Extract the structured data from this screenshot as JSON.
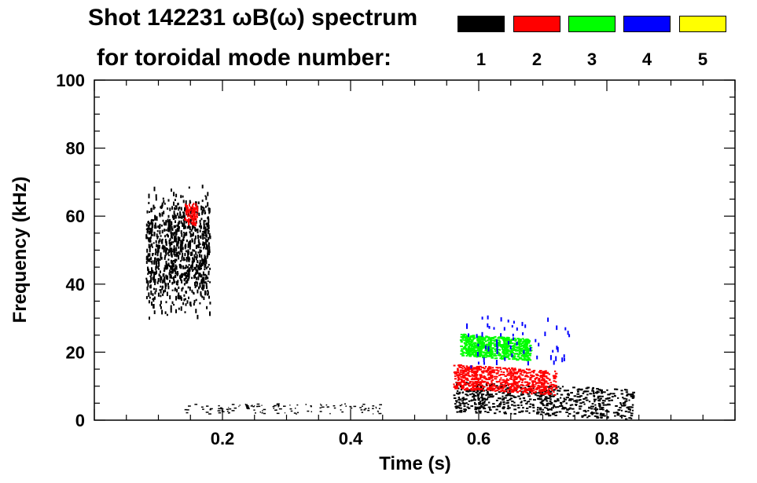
{
  "chart_data": {
    "type": "spectrogram",
    "title": "Shot 142231 ωB(ω) spectrum",
    "subtitle": "for toroidal mode number:",
    "xlabel": "Time (s)",
    "ylabel": "Frequency (kHz)",
    "xlim": [
      0.0,
      1.0
    ],
    "ylim": [
      0,
      100
    ],
    "x_ticks": [
      0.2,
      0.4,
      0.6,
      0.8
    ],
    "x_tick_labels": [
      "0.2",
      "0.4",
      "0.6",
      "0.8"
    ],
    "y_ticks": [
      0,
      20,
      40,
      60,
      80,
      100
    ],
    "y_tick_labels": [
      "0",
      "20",
      "40",
      "60",
      "80",
      "100"
    ],
    "legend": [
      {
        "label": "1",
        "color": "#000000"
      },
      {
        "label": "2",
        "color": "#ff0000"
      },
      {
        "label": "3",
        "color": "#00ff00"
      },
      {
        "label": "4",
        "color": "#0000ff"
      },
      {
        "label": "5",
        "color": "#ffff00"
      }
    ],
    "features": [
      {
        "mode": "1",
        "t_start": 0.08,
        "t_end": 0.18,
        "f_low": 30,
        "f_high": 70,
        "shape": "blob"
      },
      {
        "mode": "1",
        "t_start": 0.56,
        "t_end": 0.84,
        "f_low": 1,
        "f_high": 12,
        "shape": "band"
      },
      {
        "mode": "2",
        "t_start": 0.56,
        "t_end": 0.72,
        "f_low": 8,
        "f_high": 17,
        "shape": "band"
      },
      {
        "mode": "3",
        "t_start": 0.57,
        "t_end": 0.68,
        "f_low": 18,
        "f_high": 26,
        "shape": "band"
      },
      {
        "mode": "4",
        "t_start": 0.58,
        "t_end": 0.74,
        "f_low": 16,
        "f_high": 31,
        "shape": "patches"
      },
      {
        "mode": "2",
        "t_start": 0.14,
        "t_end": 0.16,
        "f_low": 58,
        "f_high": 64,
        "shape": "chirp"
      },
      {
        "mode": "1",
        "t_start": 0.14,
        "t_end": 0.45,
        "f_low": 2,
        "f_high": 5,
        "shape": "floor"
      }
    ]
  }
}
